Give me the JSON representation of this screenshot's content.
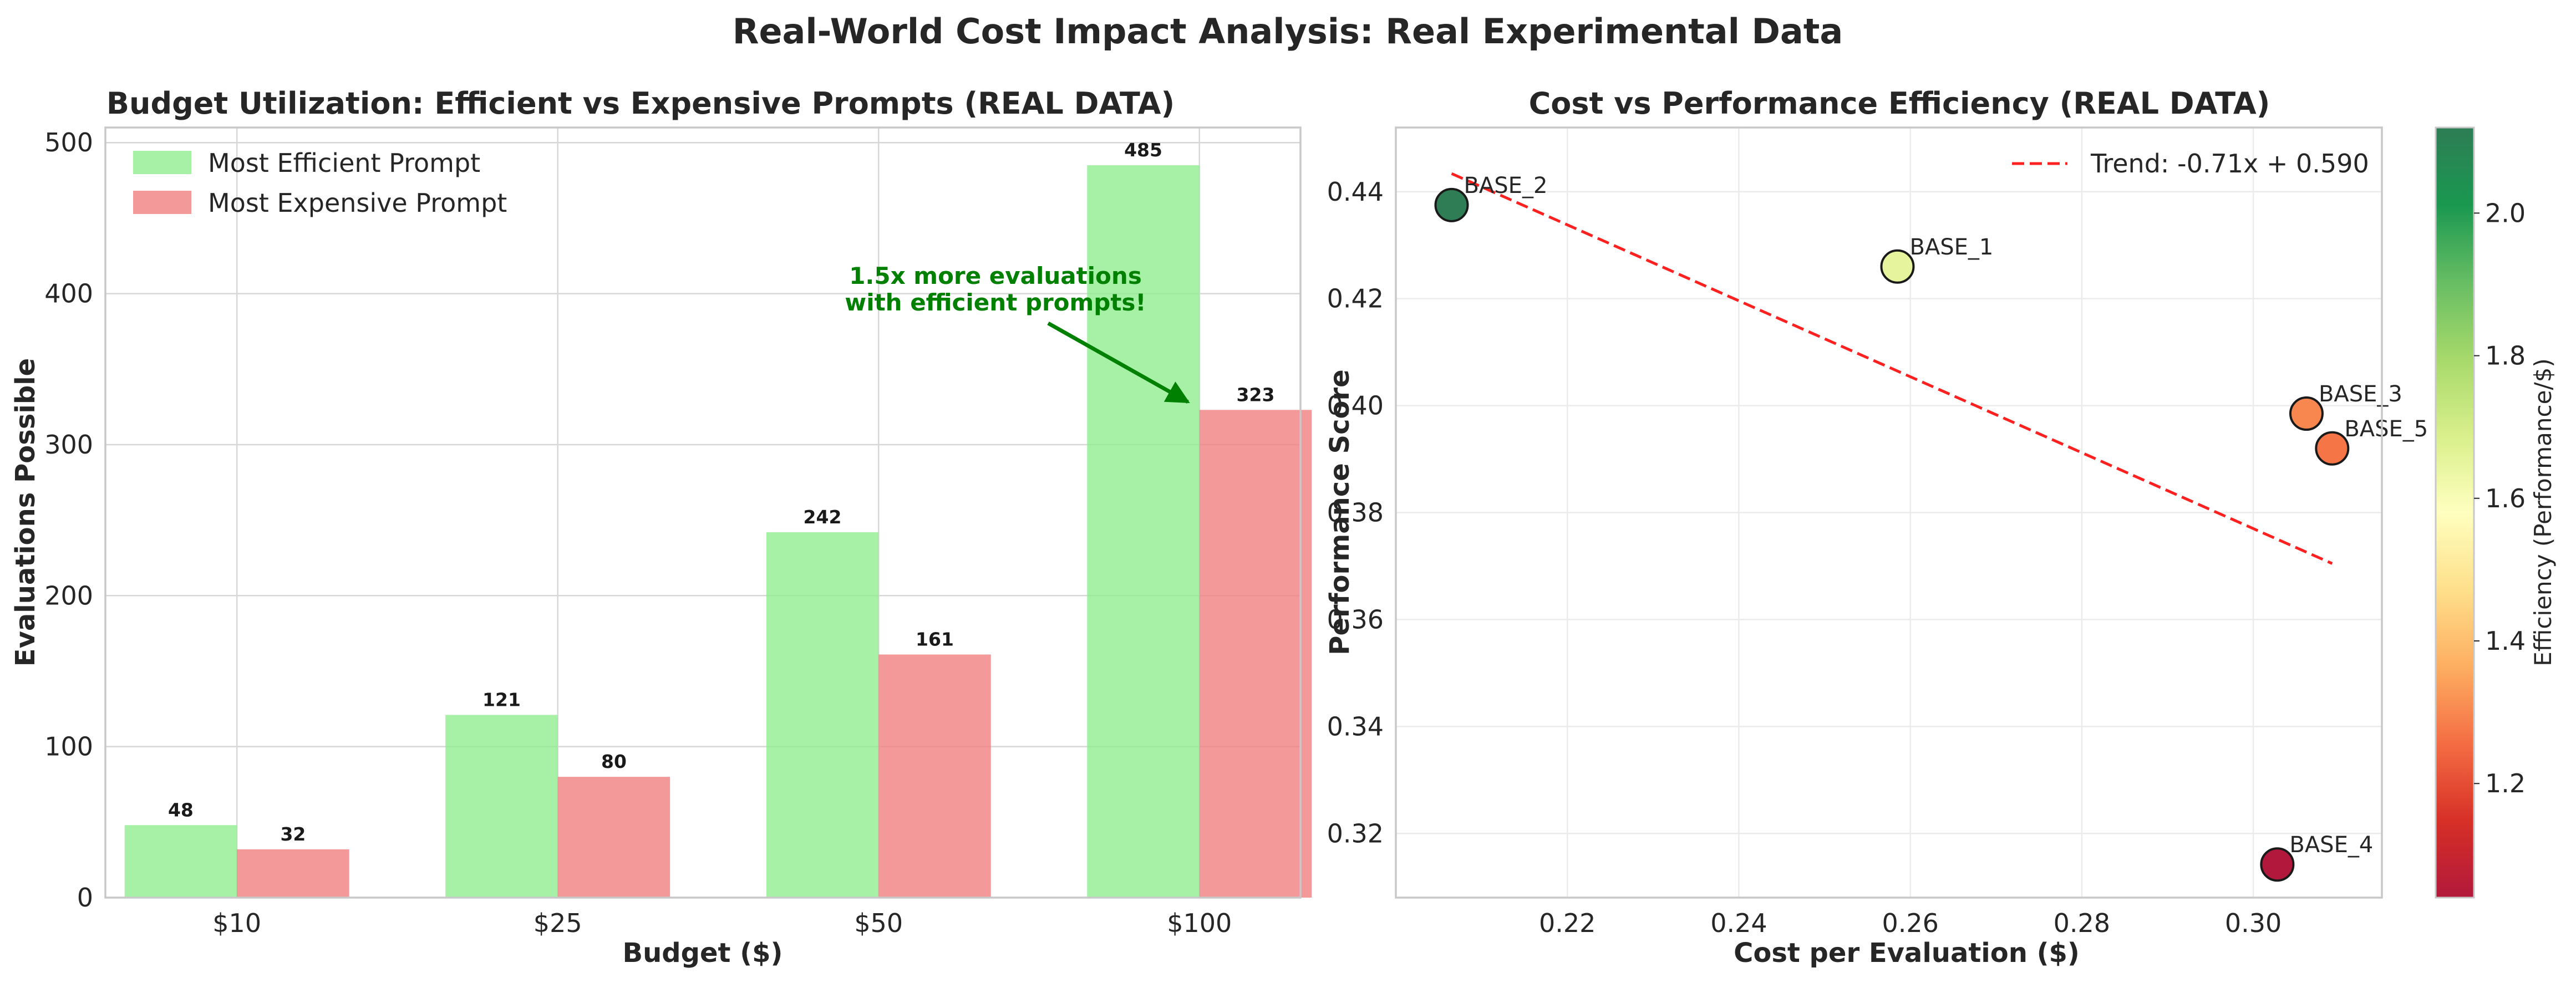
{
  "figure": {
    "title": "Real-World Cost Impact Analysis: Real Experimental Data"
  },
  "chart_data": [
    {
      "type": "bar",
      "title": "Budget Utilization: Efficient vs Expensive Prompts (REAL DATA)",
      "xlabel": "Budget ($)",
      "ylabel": "Evaluations Possible",
      "categories": [
        "$10",
        "$25",
        "$50",
        "$100"
      ],
      "series": [
        {
          "name": "Most Efficient Prompt",
          "values": [
            48,
            121,
            242,
            485
          ],
          "color": "#90ee90"
        },
        {
          "name": "Most Expensive Prompt",
          "values": [
            32,
            80,
            161,
            323
          ],
          "color": "#f08080"
        }
      ],
      "ylim": [
        0,
        510
      ],
      "yticks": [
        0,
        100,
        200,
        300,
        400,
        500
      ],
      "grid": true,
      "legend": "top-left",
      "annotation": {
        "lines": [
          "1.5x more evaluations",
          "with efficient prompts!"
        ],
        "color": "#008000",
        "arrow_to": {
          "category": "$100",
          "value": 323
        }
      }
    },
    {
      "type": "scatter",
      "title": "Cost vs Performance Efficiency (REAL DATA)",
      "xlabel": "Cost per Evaluation ($)",
      "ylabel": "Performance Score",
      "xlim": [
        0.2,
        0.315
      ],
      "ylim": [
        0.308,
        0.452
      ],
      "xticks": [
        0.22,
        0.24,
        0.26,
        0.28,
        0.3
      ],
      "xtick_labels": [
        "0.22",
        "0.24",
        "0.26",
        "0.28",
        "0.30"
      ],
      "yticks": [
        0.32,
        0.34,
        0.36,
        0.38,
        0.4,
        0.42,
        0.44
      ],
      "ytick_labels": [
        "0.32",
        "0.34",
        "0.36",
        "0.38",
        "0.40",
        "0.42",
        "0.44"
      ],
      "grid": true,
      "legend": "top-right",
      "points": [
        {
          "label": "BASE_2",
          "x": 0.2065,
          "y": 0.4375,
          "efficiency": 2.12
        },
        {
          "label": "BASE_1",
          "x": 0.2585,
          "y": 0.426,
          "efficiency": 1.65
        },
        {
          "label": "BASE_3",
          "x": 0.3062,
          "y": 0.3985,
          "efficiency": 1.3
        },
        {
          "label": "BASE_5",
          "x": 0.3092,
          "y": 0.392,
          "efficiency": 1.27
        },
        {
          "label": "BASE_4",
          "x": 0.3028,
          "y": 0.3142,
          "efficiency": 1.04
        }
      ],
      "trend": {
        "label": "Trend: -0.71x + 0.590",
        "slope": -0.71,
        "intercept": 0.59,
        "x_range": [
          0.2065,
          0.3092
        ],
        "color": "#ff0000"
      },
      "colorbar": {
        "label": "Efficiency (Performance/$)",
        "range": [
          1.04,
          2.12
        ],
        "ticks": [
          1.2,
          1.4,
          1.6,
          1.8,
          2.0
        ],
        "tick_labels": [
          "1.2",
          "1.4",
          "1.6",
          "1.8",
          "2.0"
        ],
        "colormap": "RdYlGn"
      }
    }
  ]
}
